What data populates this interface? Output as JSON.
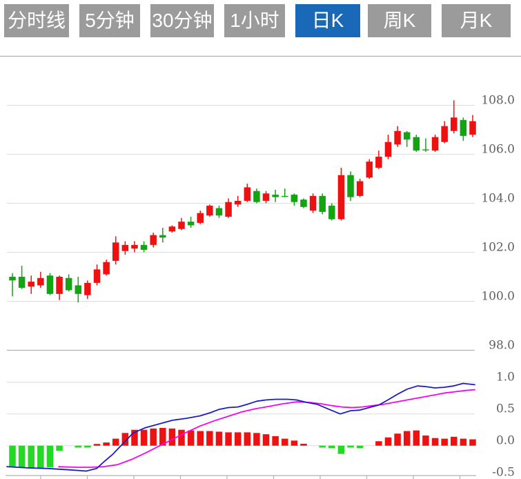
{
  "tabs": [
    {
      "label": "分时线",
      "active": false
    },
    {
      "label": "5分钟",
      "active": false
    },
    {
      "label": "30分钟",
      "active": false
    },
    {
      "label": "1小时",
      "active": false
    },
    {
      "label": "日K",
      "active": true
    },
    {
      "label": "周K",
      "active": false
    },
    {
      "label": "月K",
      "active": false
    }
  ],
  "colors": {
    "tab_bg": "#9b9b9b",
    "tab_active_bg": "#1a69b8",
    "tab_text": "#ffffff",
    "up": "#ee1111",
    "down": "#13a313",
    "macd_up": "#ee1111",
    "macd_down": "#25d825",
    "dif_line": "#1b1bc4",
    "dea_line": "#f800f8",
    "grid": "#dcdcdc",
    "axis": "#b0b0b0",
    "label": "#5f5f5f"
  },
  "chart_data": [
    {
      "type": "candlestick",
      "panel": "price",
      "ylim": [
        98.0,
        110.0
      ],
      "yticks": [
        108.0,
        106.0,
        104.0,
        102.0,
        100.0,
        98.0
      ],
      "grid": true,
      "legend": "none",
      "candles_ohlc": [
        [
          101.0,
          101.15,
          100.2,
          100.85
        ],
        [
          101.0,
          101.45,
          100.5,
          100.55
        ],
        [
          100.6,
          101.05,
          100.3,
          100.8
        ],
        [
          100.65,
          101.2,
          100.55,
          100.95
        ],
        [
          101.05,
          101.15,
          100.25,
          100.3
        ],
        [
          100.3,
          101.05,
          100.05,
          101.0
        ],
        [
          100.95,
          101.1,
          100.4,
          100.45
        ],
        [
          100.65,
          101.0,
          99.95,
          100.3
        ],
        [
          100.25,
          100.85,
          100.1,
          100.75
        ],
        [
          100.75,
          101.5,
          100.65,
          101.3
        ],
        [
          101.1,
          101.7,
          101.05,
          101.6
        ],
        [
          101.65,
          102.65,
          101.5,
          102.4
        ],
        [
          102.05,
          102.45,
          101.9,
          102.3
        ],
        [
          102.15,
          102.45,
          102.0,
          102.3
        ],
        [
          102.3,
          102.45,
          102.0,
          102.1
        ],
        [
          102.3,
          102.8,
          102.2,
          102.7
        ],
        [
          102.7,
          103.0,
          102.4,
          102.6
        ],
        [
          102.85,
          103.1,
          102.8,
          103.05
        ],
        [
          102.95,
          103.4,
          102.9,
          103.25
        ],
        [
          103.25,
          103.45,
          103.0,
          103.1
        ],
        [
          103.2,
          103.7,
          103.15,
          103.6
        ],
        [
          103.5,
          103.95,
          103.45,
          103.9
        ],
        [
          103.8,
          103.9,
          103.4,
          103.5
        ],
        [
          103.45,
          104.2,
          103.4,
          104.05
        ],
        [
          103.95,
          104.3,
          103.85,
          104.1
        ],
        [
          104.1,
          104.8,
          104.05,
          104.65
        ],
        [
          104.5,
          104.6,
          104.0,
          104.05
        ],
        [
          104.1,
          104.5,
          104.0,
          104.4
        ],
        [
          104.35,
          104.55,
          104.05,
          104.25
        ],
        [
          104.3,
          104.6,
          104.25,
          104.27
        ],
        [
          104.35,
          104.4,
          103.9,
          104.05
        ],
        [
          104.15,
          104.2,
          103.8,
          103.85
        ],
        [
          103.7,
          104.4,
          103.6,
          104.3
        ],
        [
          104.3,
          104.4,
          103.55,
          103.65
        ],
        [
          103.9,
          104.0,
          103.3,
          103.35
        ],
        [
          103.35,
          105.45,
          103.3,
          105.15
        ],
        [
          105.15,
          105.3,
          104.1,
          104.25
        ],
        [
          104.3,
          105.0,
          104.25,
          104.9
        ],
        [
          105.05,
          105.8,
          105.0,
          105.7
        ],
        [
          105.45,
          106.15,
          105.4,
          105.9
        ],
        [
          105.9,
          106.8,
          105.8,
          106.5
        ],
        [
          106.4,
          107.15,
          106.3,
          106.95
        ],
        [
          106.9,
          106.95,
          106.3,
          106.6
        ],
        [
          106.7,
          106.8,
          106.1,
          106.15
        ],
        [
          106.2,
          106.65,
          106.1,
          106.17
        ],
        [
          106.15,
          106.8,
          106.1,
          106.7
        ],
        [
          106.5,
          107.35,
          106.45,
          107.15
        ],
        [
          106.95,
          108.2,
          106.85,
          107.5
        ],
        [
          107.4,
          107.5,
          106.55,
          106.75
        ],
        [
          106.8,
          107.6,
          106.7,
          107.35
        ]
      ]
    },
    {
      "type": "bar",
      "panel": "macd-indicator",
      "ylim": [
        -0.5,
        1.5
      ],
      "yticks": [
        1.0,
        0.5,
        0.0,
        -0.5
      ],
      "grid": true,
      "histogram": [
        -0.34,
        -0.35,
        -0.36,
        -0.35,
        -0.34,
        -0.08,
        0.0,
        -0.03,
        -0.03,
        0.02,
        0.05,
        0.11,
        0.2,
        0.25,
        0.25,
        0.27,
        0.28,
        0.27,
        0.25,
        0.24,
        0.23,
        0.23,
        0.22,
        0.21,
        0.21,
        0.21,
        0.2,
        0.18,
        0.15,
        0.11,
        0.08,
        0.03,
        0.0,
        -0.03,
        -0.04,
        -0.13,
        -0.03,
        -0.04,
        0.0,
        0.07,
        0.13,
        0.19,
        0.23,
        0.24,
        0.16,
        0.12,
        0.11,
        0.14,
        0.11,
        0.1
      ],
      "series": [
        {
          "name": "DIF",
          "color": "#1b1bc4",
          "points": [
            [
              10,
              -0.33
            ],
            [
              40,
              -0.35
            ],
            [
              70,
              -0.36
            ],
            [
              100,
              -0.38
            ],
            [
              125,
              -0.4
            ],
            [
              140,
              -0.36
            ],
            [
              150,
              -0.26
            ],
            [
              163,
              -0.14
            ],
            [
              177,
              0.02
            ],
            [
              193,
              0.2
            ],
            [
              210,
              0.28
            ],
            [
              230,
              0.34
            ],
            [
              250,
              0.4
            ],
            [
              270,
              0.43
            ],
            [
              290,
              0.47
            ],
            [
              305,
              0.52
            ],
            [
              317,
              0.57
            ],
            [
              331,
              0.6
            ],
            [
              345,
              0.61
            ],
            [
              358,
              0.65
            ],
            [
              372,
              0.7
            ],
            [
              385,
              0.72
            ],
            [
              400,
              0.73
            ],
            [
              417,
              0.73
            ],
            [
              430,
              0.72
            ],
            [
              445,
              0.68
            ],
            [
              460,
              0.65
            ],
            [
              475,
              0.58
            ],
            [
              493,
              0.5
            ],
            [
              508,
              0.55
            ],
            [
              521,
              0.56
            ],
            [
              535,
              0.6
            ],
            [
              549,
              0.64
            ],
            [
              562,
              0.72
            ],
            [
              576,
              0.81
            ],
            [
              590,
              0.89
            ],
            [
              605,
              0.94
            ],
            [
              617,
              0.93
            ],
            [
              630,
              0.91
            ],
            [
              644,
              0.92
            ],
            [
              657,
              0.94
            ],
            [
              671,
              0.98
            ],
            [
              688,
              0.96
            ]
          ]
        },
        {
          "name": "DEA",
          "color": "#f800f8",
          "points": [
            [
              85,
              -0.33
            ],
            [
              110,
              -0.34
            ],
            [
              130,
              -0.34
            ],
            [
              150,
              -0.33
            ],
            [
              170,
              -0.3
            ],
            [
              190,
              -0.22
            ],
            [
              210,
              -0.12
            ],
            [
              230,
              -0.01
            ],
            [
              250,
              0.1
            ],
            [
              270,
              0.21
            ],
            [
              290,
              0.31
            ],
            [
              310,
              0.39
            ],
            [
              330,
              0.46
            ],
            [
              350,
              0.53
            ],
            [
              370,
              0.58
            ],
            [
              390,
              0.62
            ],
            [
              410,
              0.66
            ],
            [
              430,
              0.69
            ],
            [
              450,
              0.68
            ],
            [
              465,
              0.66
            ],
            [
              481,
              0.63
            ],
            [
              495,
              0.61
            ],
            [
              510,
              0.6
            ],
            [
              525,
              0.61
            ],
            [
              540,
              0.63
            ],
            [
              555,
              0.65
            ],
            [
              570,
              0.68
            ],
            [
              585,
              0.71
            ],
            [
              600,
              0.74
            ],
            [
              615,
              0.77
            ],
            [
              630,
              0.8
            ],
            [
              645,
              0.83
            ],
            [
              660,
              0.85
            ],
            [
              675,
              0.87
            ],
            [
              688,
              0.88
            ]
          ]
        }
      ]
    }
  ]
}
